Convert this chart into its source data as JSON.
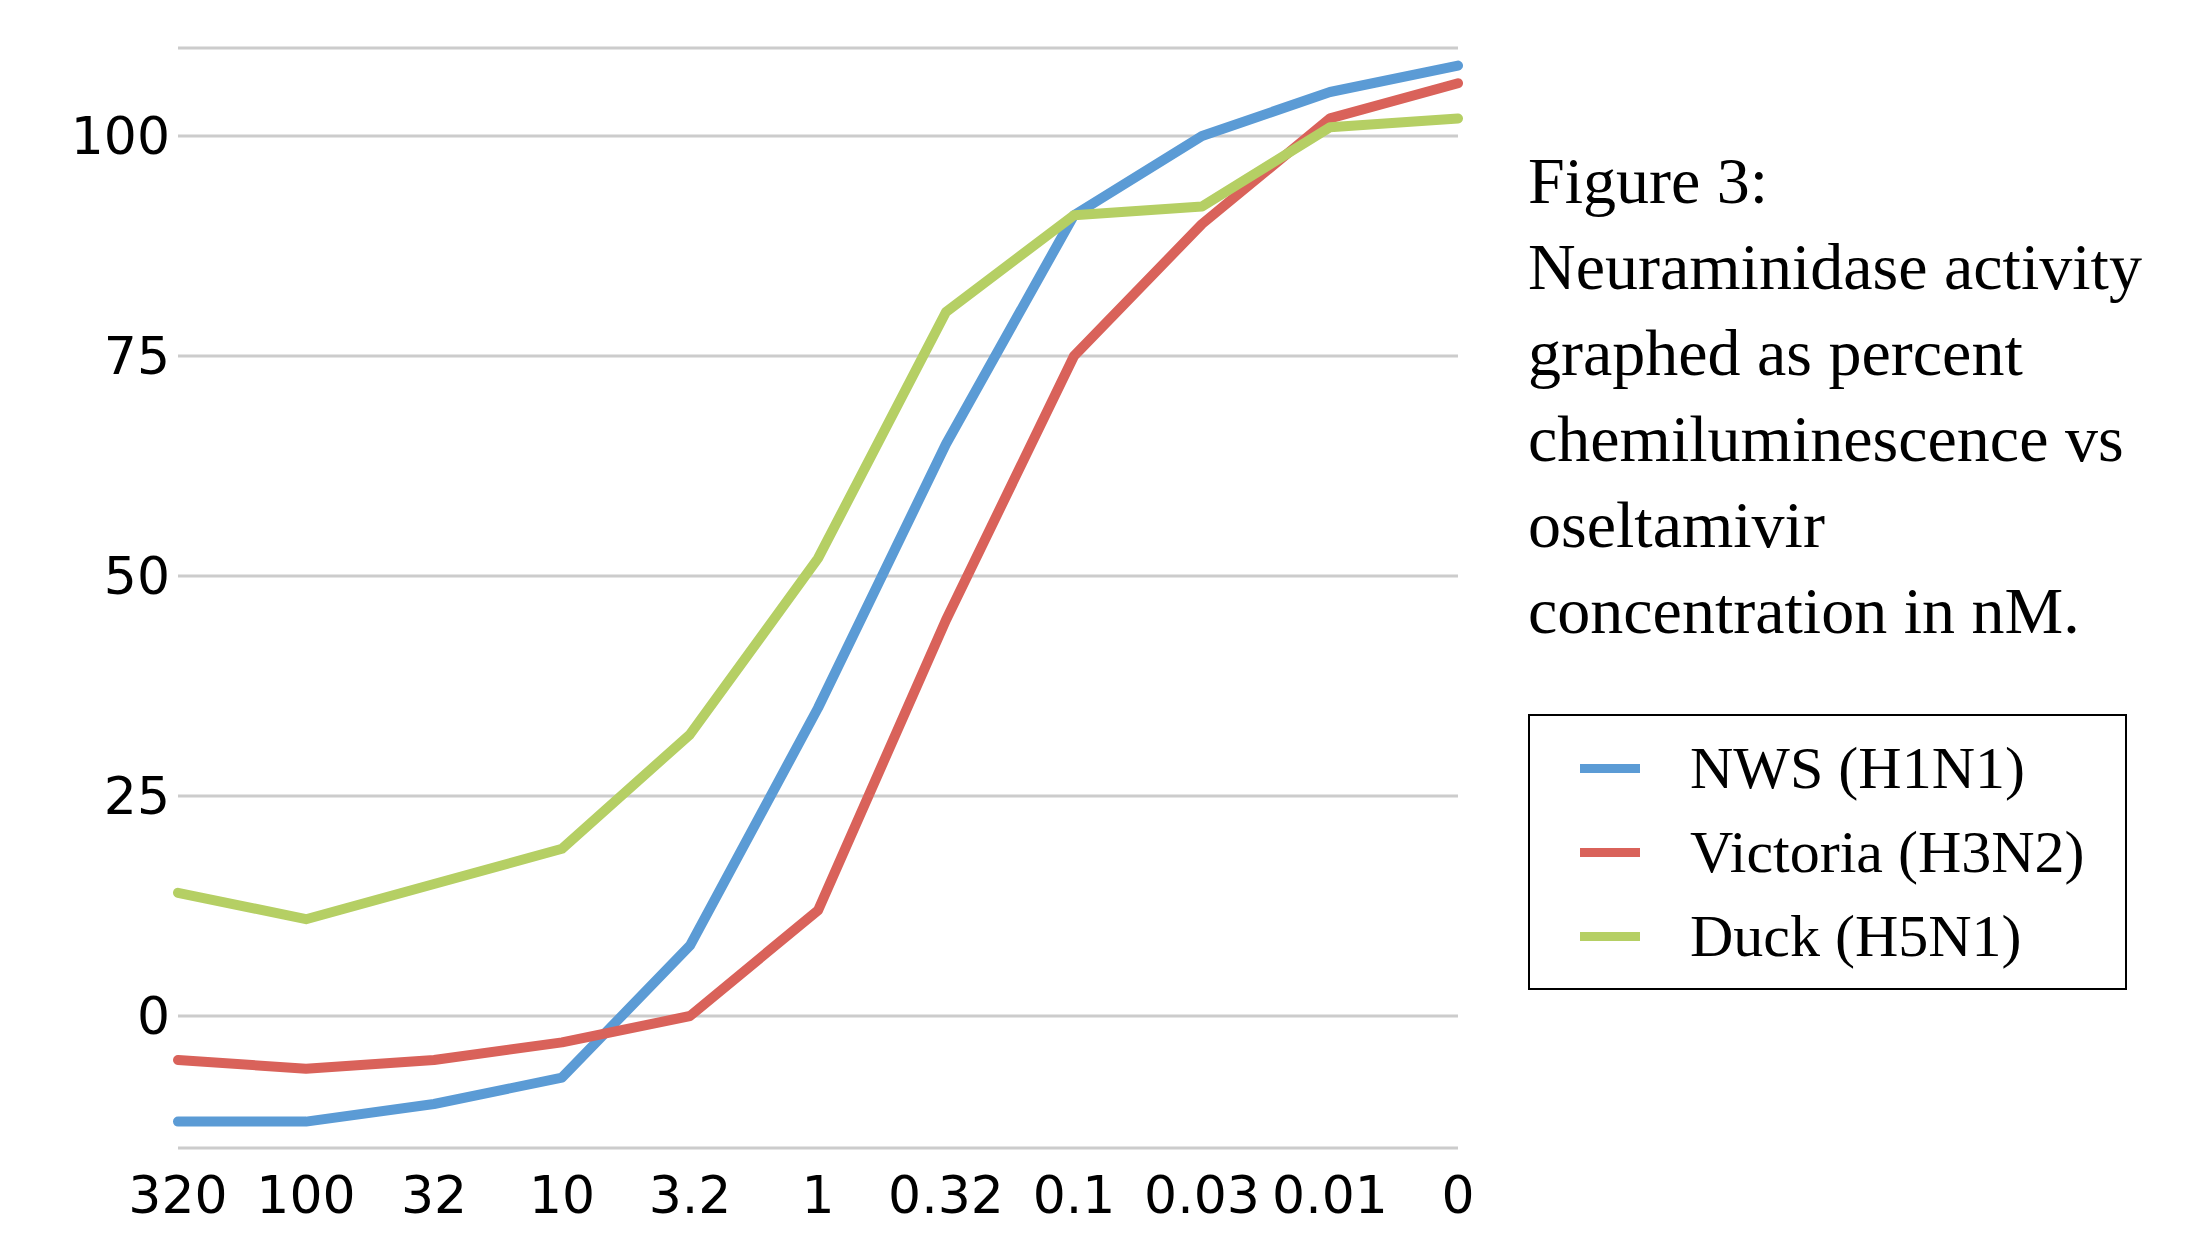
{
  "chart_data": {
    "type": "line",
    "title": "Figure 3: Neuraminidase activity graphed as percent chemiluminescence vs oseltamivir concentration in nM.",
    "categories": [
      "320",
      "100",
      "32",
      "10",
      "3.2",
      "1",
      "0.32",
      "0.1",
      "0.03",
      "0.01",
      "0"
    ],
    "series": [
      {
        "name": "NWS (H1N1)",
        "color": "#5b9bd5",
        "values": [
          -12,
          -12,
          -10,
          -7,
          8,
          35,
          65,
          91,
          100,
          105,
          108
        ]
      },
      {
        "name": "Victoria (H3N2)",
        "color": "#d9625a",
        "values": [
          -5,
          -6,
          -5,
          -3,
          0,
          12,
          45,
          75,
          90,
          102,
          106
        ]
      },
      {
        "name": "Duck (H5N1)",
        "color": "#b5cf64",
        "values": [
          14,
          11,
          15,
          19,
          32,
          52,
          80,
          91,
          92,
          101,
          102
        ]
      }
    ],
    "ylim": [
      -15,
      110
    ],
    "yticks": [
      0,
      25,
      50,
      75,
      100
    ],
    "grid": "y",
    "legend": "right",
    "marker": "none",
    "line_style": "solid"
  }
}
